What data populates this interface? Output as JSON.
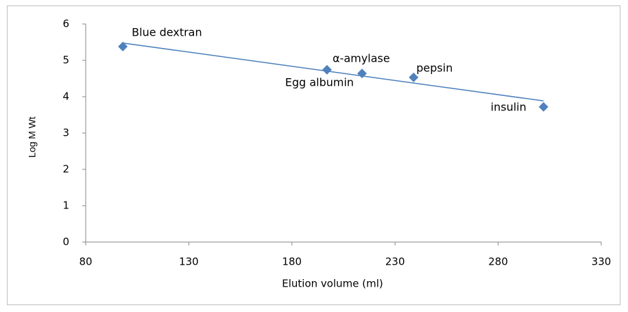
{
  "chart_data": {
    "type": "scatter",
    "x_label": "Elution volume (ml)",
    "y_label": "Log M Wt",
    "point_labels": [
      "Blue dextran",
      "α-amylase",
      "Egg albumin",
      "pepsin",
      "insulin"
    ],
    "x": [
      98,
      197,
      214,
      239,
      302
    ],
    "values": [
      5.38,
      4.74,
      4.64,
      4.53,
      3.72
    ],
    "color": "#4f81bd",
    "trendline": true,
    "trendline_color": "#4a7ebb",
    "xlim": [
      80,
      330
    ],
    "xticks": [
      80,
      130,
      180,
      230,
      280,
      330
    ],
    "ylim": [
      0,
      6
    ],
    "yticks": [
      0,
      1,
      2,
      3,
      4,
      5,
      6
    ],
    "grid": false
  }
}
